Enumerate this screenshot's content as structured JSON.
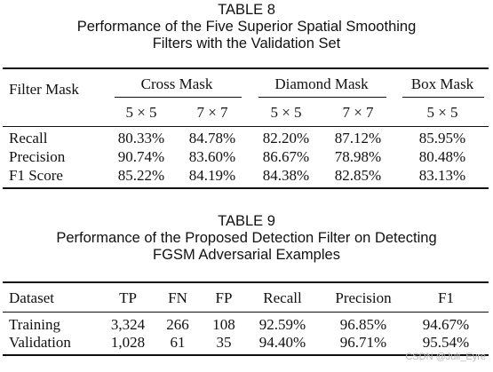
{
  "table8": {
    "caption": {
      "number": "TABLE 8",
      "line1": "Performance of the Five Superior Spatial Smoothing",
      "line2": "Filters with the Validation Set"
    },
    "row_header": "Filter Mask",
    "groups": [
      "Cross Mask",
      "Diamond Mask",
      "Box Mask"
    ],
    "sizes": [
      "5 × 5",
      "7 × 7",
      "5 × 5",
      "7 × 7",
      "5 × 5"
    ],
    "rows": [
      {
        "label": "Recall",
        "values": [
          "80.33%",
          "84.78%",
          "82.20%",
          "87.12%",
          "85.95%"
        ]
      },
      {
        "label": "Precision",
        "values": [
          "90.74%",
          "83.60%",
          "86.67%",
          "78.98%",
          "80.48%"
        ]
      },
      {
        "label": "F1 Score",
        "values": [
          "85.22%",
          "84.19%",
          "84.38%",
          "82.85%",
          "83.13%"
        ]
      }
    ]
  },
  "table9": {
    "caption": {
      "number": "TABLE 9",
      "line1": "Performance of the Proposed Detection Filter on Detecting",
      "line2": "FGSM Adversarial Examples"
    },
    "headers": [
      "Dataset",
      "TP",
      "FN",
      "FP",
      "Recall",
      "Precision",
      "F1"
    ],
    "rows": [
      {
        "values": [
          "Training",
          "3,324",
          "266",
          "108",
          "92.59%",
          "96.85%",
          "94.67%"
        ]
      },
      {
        "values": [
          "Validation",
          "1,028",
          "61",
          "35",
          "94.40%",
          "96.71%",
          "95.54%"
        ]
      }
    ]
  },
  "watermark": "CSDN @Juli_Eyre"
}
